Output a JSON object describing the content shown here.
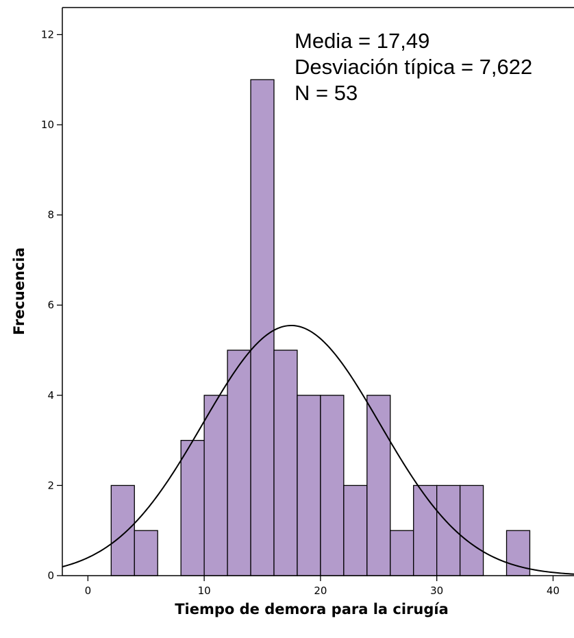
{
  "chart_data": {
    "type": "bar",
    "subtype": "histogram",
    "bin_width": 2,
    "bin_starts": [
      2,
      4,
      8,
      10,
      12,
      14,
      16,
      18,
      20,
      22,
      24,
      26,
      28,
      30,
      32,
      36
    ],
    "values": [
      2,
      1,
      3,
      4,
      5,
      11,
      5,
      4,
      4,
      2,
      4,
      1,
      2,
      2,
      2,
      1
    ],
    "bar_color": "#b39bcb",
    "bar_edge_color": "#000000",
    "normal_curve": {
      "mean": 17.49,
      "sd": 7.622,
      "n": 53,
      "color": "#000000"
    },
    "xlabel": "Tiempo de demora para la cirugía",
    "ylabel": "Frecuencia",
    "xlim": [
      -2.2,
      41.8
    ],
    "ylim": [
      0,
      12.6
    ],
    "x_ticks": [
      0,
      10,
      20,
      30,
      40
    ],
    "y_ticks": [
      0,
      2,
      4,
      6,
      8,
      10,
      12
    ],
    "grid": false,
    "stats_box": [
      "Media = 17,49",
      "Desviación típica = 7,622",
      "N = 53"
    ]
  }
}
